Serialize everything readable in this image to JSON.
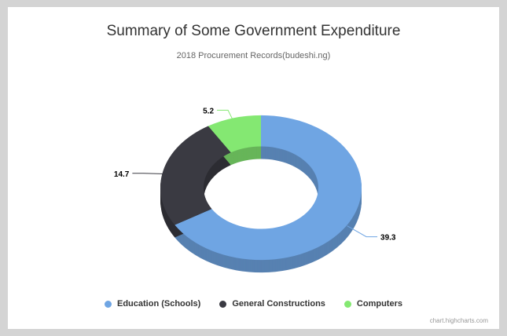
{
  "chart_data": {
    "type": "pie",
    "variant": "3d-donut",
    "title": "Summary of Some Government Expenditure",
    "subtitle": "2018 Procurement Records(budeshi.ng)",
    "series": [
      {
        "name": "Education (Schools)",
        "value": 39.3,
        "color": "#6fa5e3"
      },
      {
        "name": "General Constructions",
        "value": 14.7,
        "color": "#3a3a42"
      },
      {
        "name": "Computers",
        "value": 5.2,
        "color": "#84e872"
      }
    ],
    "legend_position": "bottom",
    "credits": "chart.highcharts.com"
  }
}
